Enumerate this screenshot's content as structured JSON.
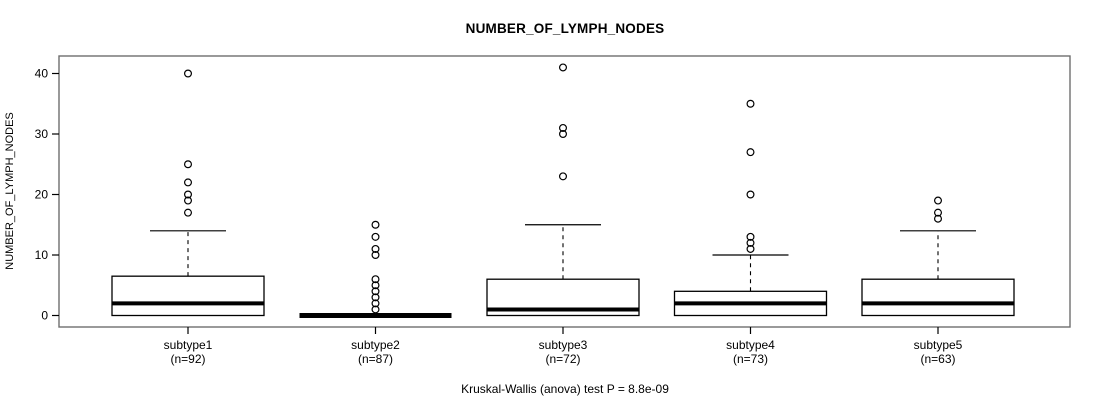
{
  "chart_data": {
    "type": "boxplot",
    "title": "NUMBER_OF_LYMPH_NODES",
    "ylabel": "NUMBER_OF_LYMPH_NODES",
    "xlabel": "",
    "annotation": "Kruskal-Wallis (anova) test P = 8.8e-09",
    "ylim": [
      0,
      41
    ],
    "yticks": [
      0,
      10,
      20,
      30,
      40
    ],
    "grid": false,
    "legend": "none",
    "colors": {
      "line": "#000000",
      "box_fill": "#ffffff",
      "frame": "#6e6e6e"
    },
    "groups": [
      {
        "label": "subtype1",
        "sublabel": "(n=92)",
        "n": 92,
        "q1": 0,
        "median": 2,
        "q3": 6.5,
        "whisker_low": 0,
        "whisker_high": 14,
        "outliers": [
          17,
          19,
          20,
          22,
          25,
          40
        ]
      },
      {
        "label": "subtype2",
        "sublabel": "(n=87)",
        "n": 87,
        "q1": 0,
        "median": 0,
        "q3": 0,
        "whisker_low": 0,
        "whisker_high": 0,
        "outliers": [
          1,
          2,
          3,
          4,
          5,
          6,
          10,
          11,
          13,
          15
        ]
      },
      {
        "label": "subtype3",
        "sublabel": "(n=72)",
        "n": 72,
        "q1": 0,
        "median": 1,
        "q3": 6,
        "whisker_low": 0,
        "whisker_high": 15,
        "outliers": [
          23,
          30,
          31,
          41
        ]
      },
      {
        "label": "subtype4",
        "sublabel": "(n=73)",
        "n": 73,
        "q1": 0,
        "median": 2,
        "q3": 4,
        "whisker_low": 0,
        "whisker_high": 10,
        "outliers": [
          11,
          12,
          13,
          20,
          27,
          35
        ]
      },
      {
        "label": "subtype5",
        "sublabel": "(n=63)",
        "n": 63,
        "q1": 0,
        "median": 2,
        "q3": 6,
        "whisker_low": 0,
        "whisker_high": 14,
        "outliers": [
          16,
          17,
          19
        ]
      }
    ]
  }
}
